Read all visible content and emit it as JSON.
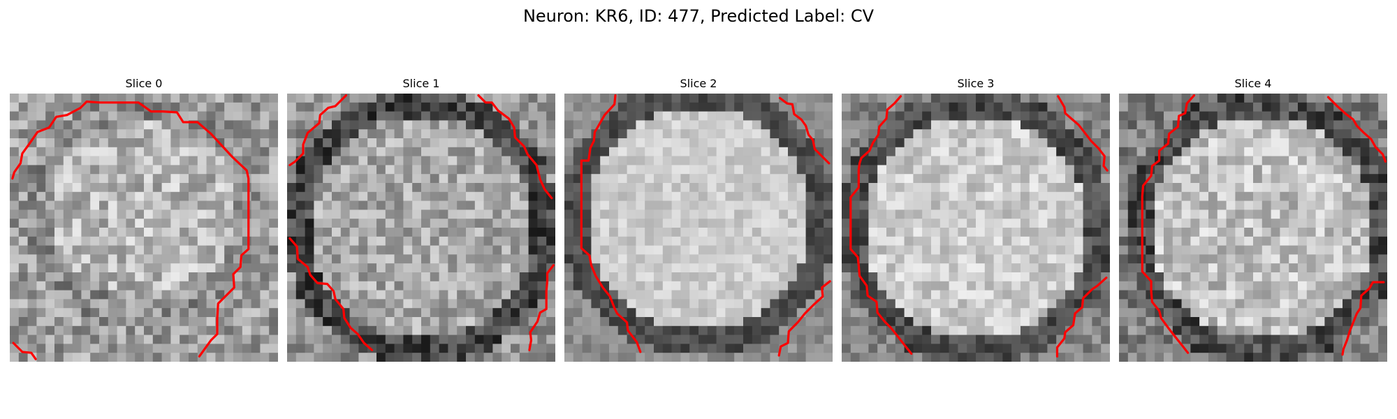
{
  "figure": {
    "title": "Neuron: KR6, ID: 477, Predicted Label: CV"
  },
  "slices": [
    {
      "title": "Slice 0"
    },
    {
      "title": "Slice 1"
    },
    {
      "title": "Slice 2"
    },
    {
      "title": "Slice 3"
    },
    {
      "title": "Slice 4"
    }
  ],
  "colors": {
    "contour": "#ff0000",
    "background": "#ffffff"
  }
}
